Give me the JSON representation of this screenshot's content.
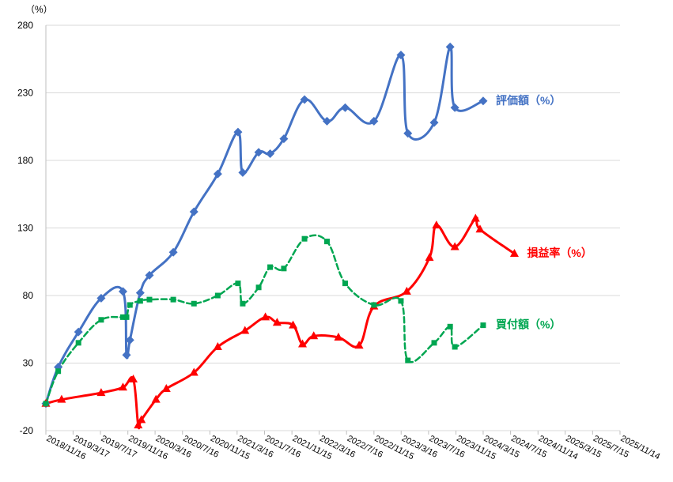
{
  "chart_data": {
    "type": "line",
    "y_unit": "（%）",
    "ylim": [
      -20,
      280
    ],
    "yticks": [
      -20,
      30,
      80,
      130,
      180,
      230,
      280
    ],
    "grid": true,
    "x_tick_labels": [
      "2018/11/16",
      "2019/3/17",
      "2019/7/17",
      "2019/11/16",
      "2020/3/16",
      "2020/7/16",
      "2020/11/15",
      "2021/3/16",
      "2021/7/16",
      "2021/11/15",
      "2022/3/16",
      "2022/7/16",
      "2022/11/15",
      "2023/3/16",
      "2023/7/16",
      "2023/11/15",
      "2024/3/15",
      "2024/7/15",
      "2024/11/14",
      "2025/3/15",
      "2025/7/15",
      "2025/11/14"
    ],
    "series": [
      {
        "name": "評価額（%）",
        "color": "#4472C4",
        "marker": "diamond",
        "dash": "solid",
        "points": [
          [
            "2018/11/16",
            0
          ],
          [
            "2019/1/10",
            27
          ],
          [
            "2019/4/10",
            53
          ],
          [
            "2019/7/20",
            78
          ],
          [
            "2019/10/25",
            83
          ],
          [
            "2019/11/10",
            36
          ],
          [
            "2019/11/25",
            47
          ],
          [
            "2020/1/10",
            82
          ],
          [
            "2020/2/20",
            95
          ],
          [
            "2020/6/5",
            112
          ],
          [
            "2020/9/5",
            142
          ],
          [
            "2020/12/20",
            170
          ],
          [
            "2021/3/20",
            201
          ],
          [
            "2021/4/10",
            171
          ],
          [
            "2021/6/20",
            186
          ],
          [
            "2021/8/10",
            185
          ],
          [
            "2021/10/10",
            196
          ],
          [
            "2022/1/10",
            225
          ],
          [
            "2022/4/20",
            209
          ],
          [
            "2022/7/10",
            219
          ],
          [
            "2022/11/15",
            209
          ],
          [
            "2023/3/15",
            258
          ],
          [
            "2023/4/15",
            200
          ],
          [
            "2023/8/10",
            208
          ],
          [
            "2023/10/20",
            264
          ],
          [
            "2023/11/10",
            219
          ],
          [
            "2024/3/15",
            224
          ]
        ]
      },
      {
        "name": "損益率（%）",
        "color": "#FF0000",
        "marker": "triangle",
        "dash": "solid",
        "points": [
          [
            "2018/11/16",
            0
          ],
          [
            "2019/1/25",
            3
          ],
          [
            "2019/7/20",
            8
          ],
          [
            "2019/10/25",
            12
          ],
          [
            "2019/12/10",
            18
          ],
          [
            "2020/1/1",
            -16
          ],
          [
            "2020/1/15",
            -12
          ],
          [
            "2020/3/20",
            3
          ],
          [
            "2020/5/5",
            11
          ],
          [
            "2020/9/5",
            23
          ],
          [
            "2020/12/20",
            42
          ],
          [
            "2021/4/20",
            54
          ],
          [
            "2021/7/20",
            64
          ],
          [
            "2021/9/10",
            60
          ],
          [
            "2021/11/20",
            58
          ],
          [
            "2022/1/1",
            44
          ],
          [
            "2022/2/20",
            50
          ],
          [
            "2022/6/10",
            49
          ],
          [
            "2022/9/10",
            43
          ],
          [
            "2022/11/15",
            72
          ],
          [
            "2023/4/10",
            83
          ],
          [
            "2023/7/20",
            108
          ],
          [
            "2023/8/20",
            132
          ],
          [
            "2023/11/10",
            116
          ],
          [
            "2024/2/10",
            137
          ],
          [
            "2024/3/1",
            129
          ],
          [
            "2024/8/1",
            111
          ]
        ]
      },
      {
        "name": "買付額（%）",
        "color": "#00A651",
        "marker": "square",
        "dash": "dashed",
        "points": [
          [
            "2018/11/16",
            0
          ],
          [
            "2019/1/10",
            24
          ],
          [
            "2019/4/10",
            45
          ],
          [
            "2019/7/20",
            62
          ],
          [
            "2019/10/25",
            64
          ],
          [
            "2019/11/10",
            64
          ],
          [
            "2019/11/25",
            73
          ],
          [
            "2020/1/10",
            76
          ],
          [
            "2020/2/20",
            77
          ],
          [
            "2020/6/5",
            77
          ],
          [
            "2020/9/5",
            74
          ],
          [
            "2020/12/20",
            80
          ],
          [
            "2021/3/20",
            89
          ],
          [
            "2021/4/10",
            74
          ],
          [
            "2021/6/20",
            86
          ],
          [
            "2021/8/10",
            101
          ],
          [
            "2021/10/10",
            100
          ],
          [
            "2022/1/10",
            122
          ],
          [
            "2022/4/20",
            120
          ],
          [
            "2022/7/10",
            89
          ],
          [
            "2022/11/15",
            73
          ],
          [
            "2023/3/15",
            76
          ],
          [
            "2023/4/15",
            32
          ],
          [
            "2023/8/10",
            45
          ],
          [
            "2023/10/20",
            57
          ],
          [
            "2023/11/10",
            42
          ],
          [
            "2024/3/15",
            58
          ]
        ]
      }
    ]
  }
}
